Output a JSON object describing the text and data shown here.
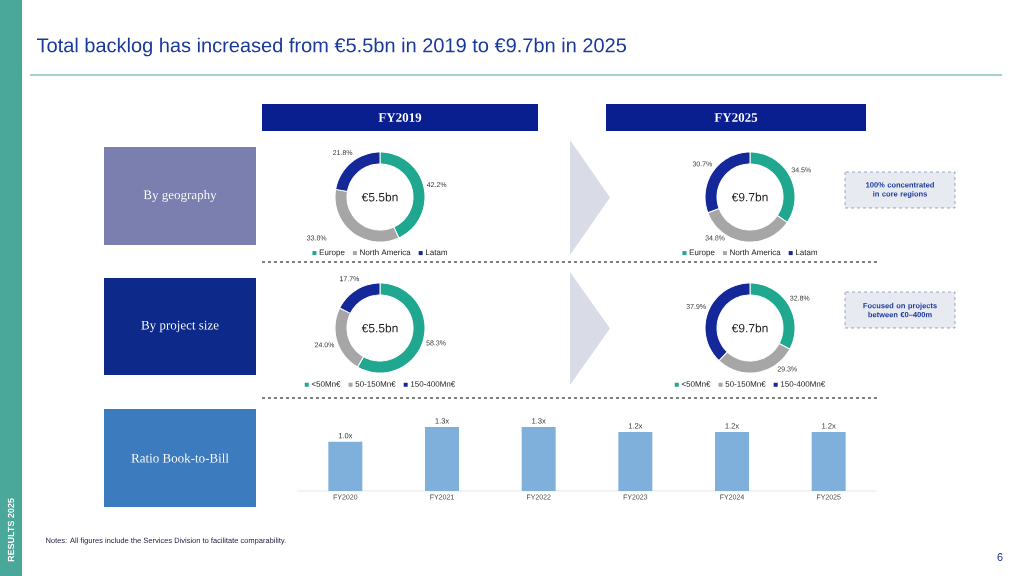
{
  "chart_data": [
    {
      "type": "other",
      "title": "Total backlog has increased from €5.5bn in 2019 to €9.7bn in 2025",
      "annotations": [
        "FY2019",
        "FY2025",
        "By geography",
        "By project size",
        "Ratio Book-to-Bill",
        "100% concentrated in core regions",
        "Focused on projects between €0–400m",
        "Notes: All figures include the Services Division to facilitate comparability.",
        "RESULTS 2025",
        "6"
      ]
    },
    {
      "type": "donut",
      "categories": [
        "Europe",
        "North America",
        "Latam"
      ],
      "values": [
        42.2,
        33.8,
        21.8
      ],
      "value_labels": [
        "42.2%",
        "33.8%",
        "21.8%"
      ],
      "colors": [
        "#1fa88f",
        "#a6a6a6",
        "#14289a"
      ],
      "annotations": [
        "€5.5bn"
      ],
      "legend": "bottom"
    },
    {
      "type": "donut",
      "categories": [
        "Europe",
        "North America",
        "Latam"
      ],
      "values": [
        34.5,
        34.8,
        30.7
      ],
      "value_labels": [
        "34.5%",
        "34.8%",
        "30.7%"
      ],
      "colors": [
        "#1fa88f",
        "#a6a6a6",
        "#14289a"
      ],
      "annotations": [
        "€9.7bn"
      ],
      "legend": "bottom"
    },
    {
      "type": "donut",
      "categories": [
        "<50Mn€",
        "50-150Mn€",
        "150-400Mn€"
      ],
      "values": [
        58.3,
        24.0,
        17.7
      ],
      "value_labels": [
        "58.3%",
        "24.0%",
        "17.7%"
      ],
      "colors": [
        "#1fa88f",
        "#a6a6a6",
        "#14289a"
      ],
      "annotations": [
        "€5.5bn"
      ],
      "legend": "bottom"
    },
    {
      "type": "donut",
      "categories": [
        "<50Mn€",
        "50-150Mn€",
        "150-400Mn€"
      ],
      "values": [
        32.8,
        29.3,
        37.9
      ],
      "value_labels": [
        "32.8%",
        "29.3%",
        "37.9%"
      ],
      "colors": [
        "#1fa88f",
        "#a6a6a6",
        "#14289a"
      ],
      "annotations": [
        "€9.7bn"
      ],
      "legend": "bottom"
    },
    {
      "type": "bar",
      "categories": [
        "FY2020",
        "FY2021",
        "FY2022",
        "FY2023",
        "FY2024",
        "FY2025"
      ],
      "values": [
        1.0,
        1.3,
        1.3,
        1.2,
        1.2,
        1.2
      ],
      "value_labels": [
        "1.0x",
        "1.3x",
        "1.3x",
        "1.2x",
        "1.2x",
        "1.2x"
      ],
      "color": "#7fb0dc",
      "tick_labels": "x"
    }
  ]
}
